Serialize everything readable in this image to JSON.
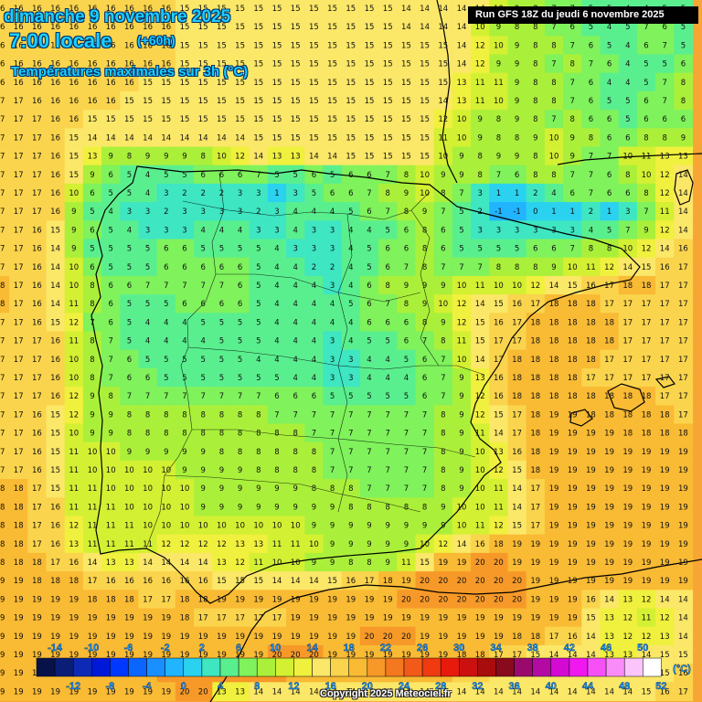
{
  "header": {
    "date": "dimanche 9 novembre 2025",
    "time": "7:00 locale",
    "offset": "(+60h)",
    "parameter": "Températures maximales sur 3h (°C)"
  },
  "run": {
    "label": "Run GFS 18Z du jeudi 6 novembre 2025"
  },
  "legend": {
    "unit": "(°C)",
    "bins": [
      {
        "label": "-14",
        "color": "#08124a"
      },
      {
        "label": "-12",
        "color": "#0a1e78"
      },
      {
        "label": "-10",
        "color": "#0c2ab5"
      },
      {
        "label": "-8",
        "color": "#0018d8"
      },
      {
        "label": "-6",
        "color": "#0038ff"
      },
      {
        "label": "-4",
        "color": "#0a66ff"
      },
      {
        "label": "-2",
        "color": "#1a8fff"
      },
      {
        "label": "0",
        "color": "#21b4ff"
      },
      {
        "label": "2",
        "color": "#2ad2f0"
      },
      {
        "label": "4",
        "color": "#3ee6c2"
      },
      {
        "label": "6",
        "color": "#5aef8e"
      },
      {
        "label": "8",
        "color": "#7ff25c"
      },
      {
        "label": "10",
        "color": "#aaf03a"
      },
      {
        "label": "12",
        "color": "#d4f032"
      },
      {
        "label": "14",
        "color": "#f0f03e"
      },
      {
        "label": "16",
        "color": "#fbe768"
      },
      {
        "label": "18",
        "color": "#fad44c"
      },
      {
        "label": "20",
        "color": "#f9ba34"
      },
      {
        "label": "22",
        "color": "#f79928"
      },
      {
        "label": "24",
        "color": "#f4781f"
      },
      {
        "label": "26",
        "color": "#f25a1a"
      },
      {
        "label": "28",
        "color": "#ef3a12"
      },
      {
        "label": "30",
        "color": "#e81a0c"
      },
      {
        "label": "32",
        "color": "#cc1010"
      },
      {
        "label": "34",
        "color": "#a80c0c"
      },
      {
        "label": "36",
        "color": "#880a1c"
      },
      {
        "label": "38",
        "color": "#9a0a6e"
      },
      {
        "label": "40",
        "color": "#b40aa4"
      },
      {
        "label": "42",
        "color": "#d40ad4"
      },
      {
        "label": "44",
        "color": "#ef18ef"
      },
      {
        "label": "46",
        "color": "#f750f7"
      },
      {
        "label": "48",
        "color": "#fa8cfa"
      },
      {
        "label": "50",
        "color": "#fbc4fb"
      },
      {
        "label": "52",
        "color": "#ffffff"
      }
    ]
  },
  "grid": {
    "rows": [
      "16 16 16 16 16 16 16 16 16 16 15 15 15 15 15 15 15 15 15 15 15 15 14 14 14 14 14 10 9 8 7 7 5 5 4 4 5 5",
      "16 16 16 16 16 16 16 16 16 16 15 15 15 15 15 15 15 15 15 15 15 15 14 14 14 14 10 9 8 8 7 6 5 4 5 7 6 5",
      "16 16 16 16 16 16 16 16 16 16 15 15 15 15 15 15 15 15 15 15 15 15 15 15 15 14 12 10 9 8 8 7 6 5 4 6 7 5",
      "16 16 16 16 16 16 16 16 16 16 15 15 15 15 15 15 15 15 15 15 15 15 15 15 15 14 12 9 9 8 7 8 7 6 4 5 5 6",
      "16 16 16 16 16 16 16 16 15 15 15 15 15 15 15 15 15 15 15 15 15 15 15 15 15 13 11 11 9 8 8 7 6 4 4 5 7 8",
      "17 17 16 16 16 16 16 15 15 15 15 15 15 15 15 15 15 15 15 15 15 15 15 15 14 13 11 10 9 8 8 7 6 5 5 6 7 8",
      "17 17 17 16 16 15 15 15 15 15 15 15 15 15 15 15 15 15 15 15 15 15 15 15 12 10 9 8 9 8 7 8 6 6 5 6 6 6",
      "17 17 17 16 15 14 14 14 14 14 14 14 14 14 15 15 15 15 15 15 15 15 15 15 11 10 9 8 8 9 10 9 8 6 6 8 8 9",
      "17 17 17 16 15 13 9 8 9 9 9 8 10 12 14 13 13 14 14 15 15 15 15 15 10 9 8 9 9 8 10 9 7 7 10 11 13 13",
      "17 17 17 16 15 9 6 5 4 5 5 6 6 6 7 5 5 6 5 6 6 7 8 10 9 9 8 7 6 8 8 7 7 6 8 10 12 14",
      "17 17 17 16 10 6 5 5 4 3 2 2 2 3 3 1 3 5 6 6 7 8 9 10 8 7 3 1 1 2 4 6 7 6 6 8 12 14",
      "17 17 17 16 9 5 4 3 3 2 3 3 3 3 2 3 4 4 4 5 6 7 8 9 7 5 2 -1 -1 0 1 1 2 1 3 7 11 14",
      "17 17 16 15 9 6 5 4 3 3 3 4 4 4 3 3 4 3 3 4 4 5 6 8 6 5 3 3 3 3 3 3 4 5 7 9 12 14",
      "17 17 16 14 9 5 5 5 5 6 6 5 5 5 5 4 3 3 3 4 5 6 6 8 6 5 5 5 5 6 6 7 8 8 10 12 14 16",
      "17 17 16 14 10 6 5 5 5 6 6 6 6 6 5 4 4 2 2 4 5 6 7 8 7 7 7 8 8 8 9 10 11 12 14 15 16 17",
      "18 17 16 14 10 8 6 6 7 7 7 7 7 6 5 4 4 4 3 4 6 8 9 9 9 10 11 10 10 12 14 15 16 17 18 18 17 17",
      "18 17 16 14 11 8 6 5 5 5 6 6 6 6 5 4 4 4 4 5 6 7 8 9 10 12 14 15 16 17 18 18 18 17 17 17 17 17",
      "17 17 16 15 12 7 6 5 4 4 4 5 5 5 5 4 4 4 4 4 6 6 6 8 9 12 15 16 17 18 18 18 18 18 17 17 17 17",
      "17 17 17 16 11 8 7 5 4 4 4 4 5 5 5 4 4 4 3 4 5 5 6 7 8 11 15 17 17 18 18 18 18 18 17 17 17 17",
      "17 17 17 16 10 8 7 6 5 5 5 5 5 5 4 4 4 4 3 3 4 4 5 6 7 10 14 17 18 18 18 18 18 17 17 17 17 17",
      "17 17 17 16 10 8 7 6 6 5 5 5 5 5 5 5 4 4 3 3 4 4 4 6 7 9 13 16 18 18 18 18 17 17 17 17 17 17",
      "17 17 17 16 12 9 8 7 7 7 7 7 7 7 7 6 6 6 5 5 5 5 5 6 7 9 12 16 18 18 18 18 18 18 18 18 17 17",
      "17 17 16 15 12 9 9 8 8 8 8 8 8 8 8 7 7 7 7 7 7 7 7 7 8 9 12 15 17 18 19 19 18 18 18 18 18 17",
      "17 17 16 15 10 9 9 8 8 8 8 8 8 8 8 8 8 7 7 7 7 7 7 7 8 9 11 14 17 18 19 19 19 19 18 18 18 18",
      "17 17 16 15 11 10 10 9 9 9 9 9 8 8 8 8 8 8 7 7 7 7 7 7 8 9 10 13 16 18 19 19 19 19 19 19 19 19",
      "17 17 16 15 11 10 10 10 10 10 9 9 9 9 8 8 8 8 7 7 7 7 7 7 8 9 10 12 15 18 19 19 19 19 19 19 19 19",
      "18 18 17 15 11 11 10 10 10 10 10 9 9 9 9 9 9 8 8 8 7 7 7 7 8 9 10 11 14 17 19 19 19 19 19 19 19 19",
      "18 18 17 16 11 11 11 10 10 10 10 9 9 9 9 9 9 9 9 8 8 8 8 8 9 10 10 11 14 17 19 19 19 19 19 19 19 19",
      "18 18 17 16 12 11 11 11 10 10 10 10 10 10 10 10 10 9 9 9 9 9 9 9 9 10 11 12 15 17 19 19 19 19 19 19 19 19",
      "18 18 17 16 13 11 11 11 11 12 12 12 12 13 13 11 11 10 9 9 9 9 9 10 12 14 16 18 19 19 19 19 19 19 19 19 19 19",
      "18 18 18 17 16 14 13 13 14 14 14 14 13 12 11 10 10 9 9 8 8 9 11 15 19 19 20 20 19 19 19 19 19 19 19 19 19 19",
      "19 19 18 18 18 17 16 16 16 16 16 16 15 15 15 14 14 14 15 16 17 18 19 20 20 20 20 20 20 19 19 19 19 19 19 19 19 19",
      "19 19 19 19 19 18 18 18 17 17 18 18 19 19 19 19 19 19 19 19 19 19 20 20 20 20 20 20 20 19 19 19 16 14 13 12 14 14",
      "19 19 19 19 19 19 19 19 19 19 18 17 17 17 17 17 19 19 19 19 19 19 19 19 19 19 19 19 19 19 19 19 15 13 12 11 12 14",
      "19 19 19 19 19 19 19 19 19 19 19 19 19 19 19 19 19 19 19 19 20 20 20 19 19 19 19 19 18 18 17 16 14 13 12 12 13 14",
      "19 19 19 19 19 19 19 19 19 19 19 19 19 19 19 20 20 20 19 19 19 19 19 19 19 18 18 17 17 15 14 14 14 13 13 14 15 15",
      "19 19 19 19 19 19 19 19 19 20 20 20 20 20 20 20 19 19 19 19 19 19 19 19 18 17 16 15 15 14 14 14 14 14 14 14 15 16",
      "19 19 19 19 19 19 19 19 19 19 20 20 13 13 14 14 14 14 14 14 14 14 14 14 14 14 14 14 14 14 14 14 14 14 14 15 16 17"
    ]
  },
  "copyright": "Copyright 2025 Meteociel.fr"
}
